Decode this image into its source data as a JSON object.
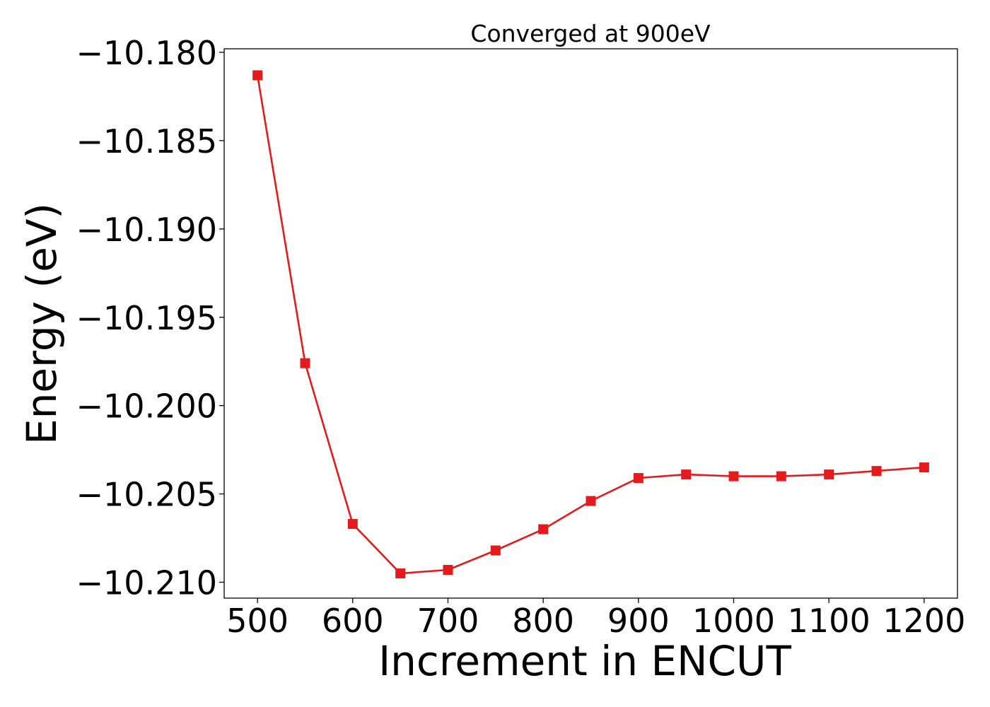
{
  "chart_data": {
    "type": "line",
    "title": "Converged at 900eV",
    "xlabel": "Increment in ENCUT",
    "ylabel": "Energy (eV)",
    "xlim": [
      465,
      1235
    ],
    "ylim": [
      -10.2109,
      -10.1798
    ],
    "x_ticks": [
      500,
      600,
      700,
      800,
      900,
      1000,
      1100,
      1200
    ],
    "y_ticks": [
      -10.18,
      -10.185,
      -10.19,
      -10.195,
      -10.2,
      -10.205,
      -10.21
    ],
    "y_tick_labels": [
      "−10.180",
      "−10.185",
      "−10.190",
      "−10.195",
      "−10.200",
      "−10.205",
      "−10.210"
    ],
    "grid": false,
    "legend": "none",
    "series": [
      {
        "color": "#e41a1c",
        "marker": "square",
        "x": [
          500,
          550,
          600,
          650,
          700,
          750,
          800,
          850,
          900,
          950,
          1000,
          1050,
          1100,
          1150,
          1200
        ],
        "y": [
          -10.1813,
          -10.1976,
          -10.2067,
          -10.2095,
          -10.2093,
          -10.2082,
          -10.207,
          -10.2054,
          -10.2041,
          -10.2039,
          -10.204,
          -10.204,
          -10.2039,
          -10.2037,
          -10.2035
        ]
      }
    ]
  }
}
